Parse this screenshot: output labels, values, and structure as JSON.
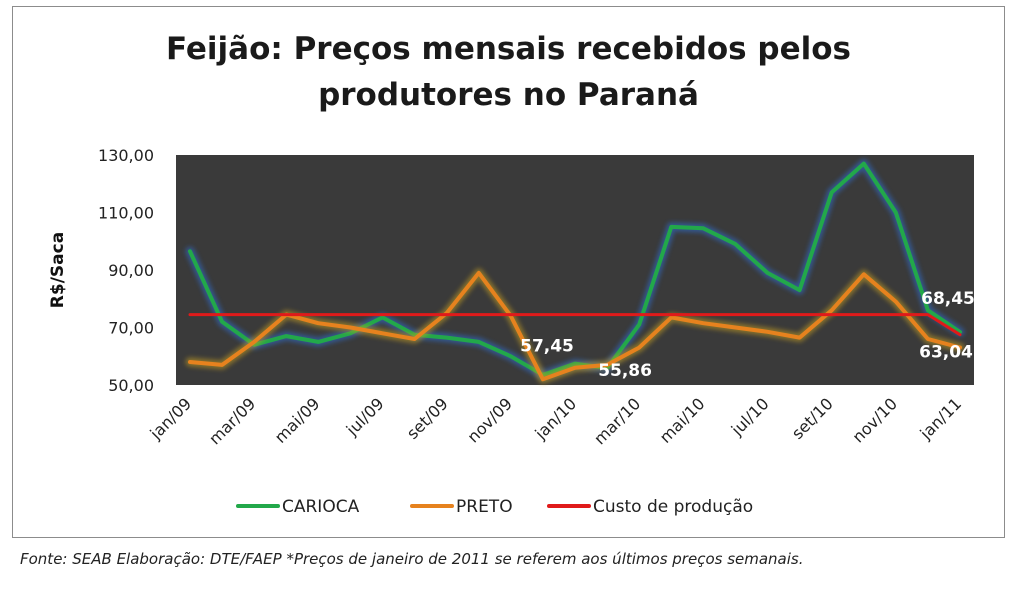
{
  "chart_data": {
    "type": "line",
    "title": "Feijão: Preços mensais recebidos pelos produtores no Paraná",
    "title_lines": [
      "Feijão: Preços mensais recebidos pelos",
      "produtores no Paraná"
    ],
    "ylabel": "R$/Saca",
    "xlabel": "",
    "ylim": [
      50,
      130
    ],
    "yticks": [
      "50,00",
      "70,00",
      "90,00",
      "110,00",
      "130,00"
    ],
    "ytick_values": [
      50,
      70,
      90,
      110,
      130
    ],
    "x": [
      "jan/09",
      "fev/09",
      "mar/09",
      "abr/09",
      "mai/09",
      "jun/09",
      "jul/09",
      "ago/09",
      "set/09",
      "out/09",
      "nov/09",
      "dez/09",
      "jan/10",
      "fev/10",
      "mar/10",
      "abr/10",
      "mai/10",
      "jun/10",
      "jul/10",
      "ago/10",
      "set/10",
      "out/10",
      "nov/10",
      "dez/10",
      "jan/11"
    ],
    "xtick_labels": [
      "jan/09",
      "mar/09",
      "mai/09",
      "jul/09",
      "set/09",
      "nov/09",
      "jan/10",
      "mar/10",
      "mai/10",
      "jul/10",
      "set/10",
      "nov/10",
      "jan/11"
    ],
    "series": [
      {
        "name": "CARIOCA",
        "color": "#22a84a",
        "values": [
          96.5,
          72,
          64,
          67,
          65,
          68,
          73.5,
          67.5,
          66.5,
          65,
          60,
          53.5,
          57.45,
          55.86,
          71,
          105,
          104.5,
          99,
          89,
          83,
          117,
          127,
          110,
          76,
          68.45
        ]
      },
      {
        "name": "PRETO",
        "color": "#e6821e",
        "values": [
          58,
          57,
          65,
          74.5,
          71.5,
          70,
          68,
          66,
          75,
          89,
          74,
          52,
          56,
          57,
          63,
          73.5,
          71.5,
          70,
          68.5,
          66.5,
          76,
          88.5,
          79,
          66,
          63.04
        ]
      },
      {
        "name": "Custo de produção",
        "color": "#e01a1a",
        "values": [
          74.5,
          74.5,
          74.5,
          74.5,
          74.5,
          74.5,
          74.5,
          74.5,
          74.5,
          74.5,
          74.5,
          74.5,
          74.5,
          74.5,
          74.5,
          74.5,
          74.5,
          74.5,
          74.5,
          74.5,
          74.5,
          74.5,
          74.5,
          74.5,
          67.5
        ]
      }
    ],
    "annotations": [
      {
        "text": "57,45",
        "series": "CARIOCA",
        "index": 12
      },
      {
        "text": "55,86",
        "series": "CARIOCA",
        "index": 13
      },
      {
        "text": "68,45",
        "series": "CARIOCA",
        "index": 24
      },
      {
        "text": "63,04",
        "series": "PRETO",
        "index": 24
      }
    ],
    "legend_position": "bottom",
    "grid": false,
    "plot_background": "#3a3a3a"
  },
  "footnote": "Fonte: SEAB Elaboração: DTE/FAEP  *Preços de janeiro de 2011 se referem  aos últimos preços semanais."
}
